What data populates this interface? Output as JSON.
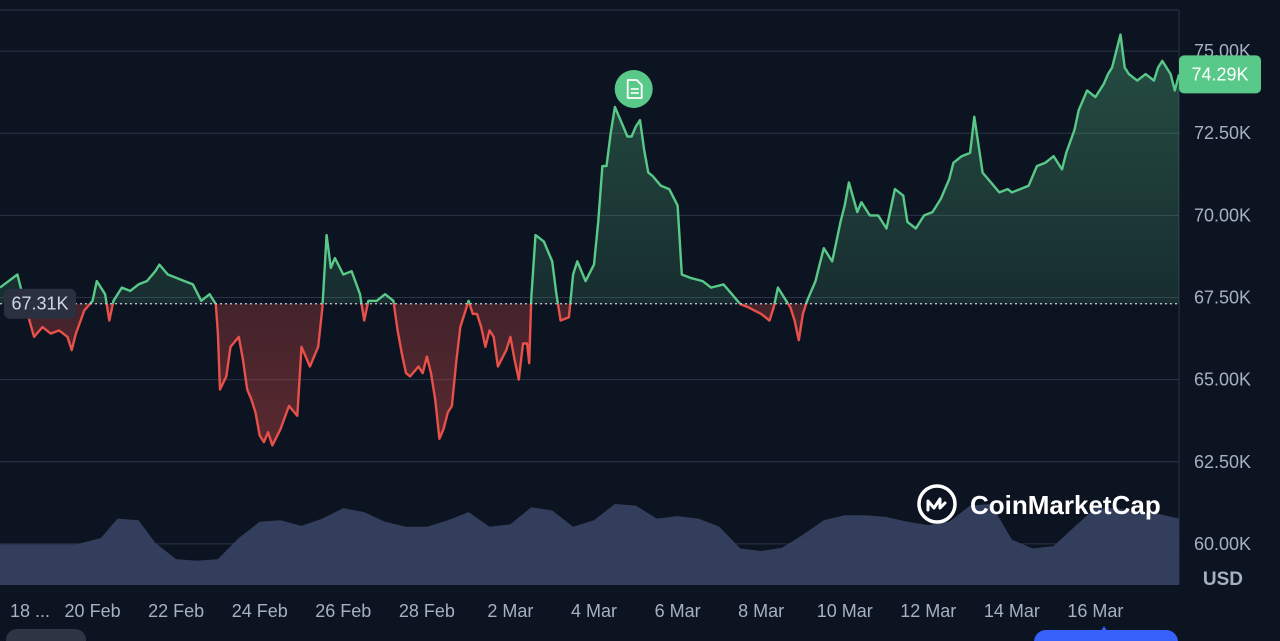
{
  "brand": "CoinMarketCap",
  "currency_label": "USD",
  "colors": {
    "background": "#0d1421",
    "up": "#59c989",
    "down": "#e8504a",
    "volume": "#3a4566",
    "grid": "#2b3346",
    "badge": "#59c989",
    "reference_badge": "#2a3040"
  },
  "icons": {
    "event_marker": "document-icon",
    "brand_logo": "coinmarketcap-logo-icon"
  },
  "chart_data": {
    "type": "area",
    "title": "",
    "xlabel": "",
    "ylabel": "USD",
    "ylim": [
      58750,
      76250
    ],
    "x_range": [
      0,
      30
    ],
    "grid": "horizontal",
    "y_ticks": [
      {
        "value": 75000,
        "label": "75.00K"
      },
      {
        "value": 72500,
        "label": "72.50K"
      },
      {
        "value": 70000,
        "label": "70.00K"
      },
      {
        "value": 67500,
        "label": "67.50K"
      },
      {
        "value": 65000,
        "label": "65.00K"
      },
      {
        "value": 62500,
        "label": "62.50K"
      },
      {
        "value": 60000,
        "label": "60.00K"
      }
    ],
    "x_ticks": [
      {
        "day": 0,
        "label": "18 ..."
      },
      {
        "day": 2,
        "label": "20 Feb"
      },
      {
        "day": 4,
        "label": "22 Feb"
      },
      {
        "day": 6,
        "label": "24 Feb"
      },
      {
        "day": 8,
        "label": "26 Feb"
      },
      {
        "day": 10,
        "label": "28 Feb"
      },
      {
        "day": 12,
        "label": "2 Mar"
      },
      {
        "day": 14,
        "label": "4 Mar"
      },
      {
        "day": 16,
        "label": "6 Mar"
      },
      {
        "day": 18,
        "label": "8 Mar"
      },
      {
        "day": 20,
        "label": "10 Mar"
      },
      {
        "day": 22,
        "label": "12 Mar"
      },
      {
        "day": 24,
        "label": "14 Mar"
      },
      {
        "day": 26,
        "label": "16 Mar"
      }
    ],
    "reference_price": {
      "value": 67310,
      "label": "67.31K"
    },
    "current_price": {
      "value": 74290,
      "label": "74.29K"
    },
    "event_marker_day": 14.95,
    "price": [
      [
        0.0,
        67800
      ],
      [
        0.2,
        68200
      ],
      [
        0.4,
        67200
      ],
      [
        0.6,
        66300
      ],
      [
        0.8,
        66600
      ],
      [
        1.0,
        66400
      ],
      [
        1.2,
        66500
      ],
      [
        1.4,
        66300
      ],
      [
        1.5,
        65900
      ],
      [
        1.6,
        66400
      ],
      [
        1.8,
        67100
      ],
      [
        2.0,
        67400
      ],
      [
        2.1,
        68000
      ],
      [
        2.3,
        67600
      ],
      [
        2.4,
        66800
      ],
      [
        2.5,
        67400
      ],
      [
        2.7,
        67800
      ],
      [
        2.9,
        67700
      ],
      [
        3.1,
        67900
      ],
      [
        3.3,
        68000
      ],
      [
        3.5,
        68300
      ],
      [
        3.6,
        68500
      ],
      [
        3.8,
        68200
      ],
      [
        4.0,
        68100
      ],
      [
        4.2,
        68000
      ],
      [
        4.4,
        67900
      ],
      [
        4.6,
        67400
      ],
      [
        4.8,
        67600
      ],
      [
        4.95,
        67300
      ],
      [
        5.0,
        66400
      ],
      [
        5.05,
        64700
      ],
      [
        5.2,
        65100
      ],
      [
        5.3,
        66000
      ],
      [
        5.5,
        66300
      ],
      [
        5.6,
        65600
      ],
      [
        5.7,
        64700
      ],
      [
        5.8,
        64400
      ],
      [
        5.9,
        64000
      ],
      [
        6.0,
        63300
      ],
      [
        6.1,
        63100
      ],
      [
        6.2,
        63400
      ],
      [
        6.3,
        63000
      ],
      [
        6.5,
        63500
      ],
      [
        6.7,
        64200
      ],
      [
        6.9,
        63900
      ],
      [
        7.0,
        66000
      ],
      [
        7.2,
        65400
      ],
      [
        7.4,
        66000
      ],
      [
        7.5,
        67200
      ],
      [
        7.6,
        69400
      ],
      [
        7.7,
        68400
      ],
      [
        7.8,
        68700
      ],
      [
        8.0,
        68200
      ],
      [
        8.2,
        68300
      ],
      [
        8.4,
        67600
      ],
      [
        8.5,
        66800
      ],
      [
        8.6,
        67400
      ],
      [
        8.8,
        67400
      ],
      [
        9.0,
        67600
      ],
      [
        9.2,
        67400
      ],
      [
        9.3,
        66500
      ],
      [
        9.4,
        65800
      ],
      [
        9.5,
        65200
      ],
      [
        9.6,
        65100
      ],
      [
        9.8,
        65400
      ],
      [
        9.9,
        65200
      ],
      [
        10.0,
        65700
      ],
      [
        10.1,
        65200
      ],
      [
        10.2,
        64400
      ],
      [
        10.3,
        63200
      ],
      [
        10.4,
        63500
      ],
      [
        10.5,
        64000
      ],
      [
        10.6,
        64200
      ],
      [
        10.7,
        65500
      ],
      [
        10.8,
        66600
      ],
      [
        11.0,
        67400
      ],
      [
        11.1,
        67000
      ],
      [
        11.2,
        67000
      ],
      [
        11.3,
        66600
      ],
      [
        11.4,
        66000
      ],
      [
        11.5,
        66500
      ],
      [
        11.6,
        66300
      ],
      [
        11.7,
        65400
      ],
      [
        11.9,
        65900
      ],
      [
        12.0,
        66300
      ],
      [
        12.1,
        65600
      ],
      [
        12.2,
        65000
      ],
      [
        12.3,
        66100
      ],
      [
        12.4,
        66100
      ],
      [
        12.45,
        65500
      ],
      [
        12.5,
        67500
      ],
      [
        12.6,
        69400
      ],
      [
        12.8,
        69200
      ],
      [
        13.0,
        68600
      ],
      [
        13.1,
        67600
      ],
      [
        13.2,
        66800
      ],
      [
        13.4,
        66900
      ],
      [
        13.5,
        68200
      ],
      [
        13.6,
        68600
      ],
      [
        13.8,
        68000
      ],
      [
        14.0,
        68500
      ],
      [
        14.1,
        69800
      ],
      [
        14.2,
        71500
      ],
      [
        14.3,
        71500
      ],
      [
        14.4,
        72500
      ],
      [
        14.5,
        73300
      ],
      [
        14.6,
        73000
      ],
      [
        14.7,
        72700
      ],
      [
        14.8,
        72400
      ],
      [
        14.9,
        72400
      ],
      [
        15.0,
        72700
      ],
      [
        15.1,
        72900
      ],
      [
        15.2,
        72000
      ],
      [
        15.3,
        71300
      ],
      [
        15.4,
        71200
      ],
      [
        15.6,
        70900
      ],
      [
        15.8,
        70800
      ],
      [
        16.0,
        70300
      ],
      [
        16.1,
        68200
      ],
      [
        16.3,
        68100
      ],
      [
        16.6,
        68000
      ],
      [
        16.8,
        67800
      ],
      [
        17.1,
        67900
      ],
      [
        17.3,
        67600
      ],
      [
        17.5,
        67300
      ],
      [
        17.7,
        67200
      ],
      [
        18.0,
        67000
      ],
      [
        18.2,
        66800
      ],
      [
        18.3,
        67200
      ],
      [
        18.4,
        67800
      ],
      [
        18.6,
        67400
      ],
      [
        18.7,
        67200
      ],
      [
        18.8,
        66800
      ],
      [
        18.9,
        66200
      ],
      [
        19.0,
        67000
      ],
      [
        19.1,
        67400
      ],
      [
        19.3,
        68000
      ],
      [
        19.4,
        68500
      ],
      [
        19.5,
        69000
      ],
      [
        19.7,
        68600
      ],
      [
        19.8,
        69200
      ],
      [
        19.9,
        69800
      ],
      [
        20.0,
        70300
      ],
      [
        20.1,
        71000
      ],
      [
        20.3,
        70100
      ],
      [
        20.4,
        70400
      ],
      [
        20.6,
        70000
      ],
      [
        20.8,
        70000
      ],
      [
        20.9,
        69800
      ],
      [
        21.0,
        69600
      ],
      [
        21.2,
        70800
      ],
      [
        21.4,
        70600
      ],
      [
        21.5,
        69800
      ],
      [
        21.7,
        69600
      ],
      [
        21.9,
        70000
      ],
      [
        22.1,
        70100
      ],
      [
        22.3,
        70500
      ],
      [
        22.5,
        71100
      ],
      [
        22.6,
        71600
      ],
      [
        22.8,
        71800
      ],
      [
        23.0,
        71900
      ],
      [
        23.1,
        73000
      ],
      [
        23.3,
        71300
      ],
      [
        23.5,
        71000
      ],
      [
        23.7,
        70700
      ],
      [
        23.9,
        70800
      ],
      [
        24.0,
        70700
      ],
      [
        24.2,
        70800
      ],
      [
        24.4,
        70900
      ],
      [
        24.6,
        71500
      ],
      [
        24.8,
        71600
      ],
      [
        25.0,
        71800
      ],
      [
        25.2,
        71400
      ],
      [
        25.3,
        71900
      ],
      [
        25.5,
        72600
      ],
      [
        25.6,
        73200
      ],
      [
        25.8,
        73800
      ],
      [
        26.0,
        73600
      ],
      [
        26.2,
        74000
      ],
      [
        26.3,
        74300
      ],
      [
        26.4,
        74500
      ],
      [
        26.6,
        75500
      ],
      [
        26.7,
        74500
      ],
      [
        26.8,
        74300
      ],
      [
        27.0,
        74100
      ],
      [
        27.2,
        74300
      ],
      [
        27.4,
        74100
      ],
      [
        27.5,
        74500
      ],
      [
        27.6,
        74700
      ],
      [
        27.8,
        74300
      ],
      [
        27.9,
        73800
      ],
      [
        28.0,
        74290
      ]
    ],
    "volume": [
      [
        0,
        0.5
      ],
      [
        1,
        0.5
      ],
      [
        1.6,
        0.5
      ],
      [
        2.2,
        0.58
      ],
      [
        2.6,
        0.82
      ],
      [
        3.1,
        0.8
      ],
      [
        3.5,
        0.52
      ],
      [
        4.0,
        0.32
      ],
      [
        4.5,
        0.3
      ],
      [
        5.0,
        0.32
      ],
      [
        5.5,
        0.58
      ],
      [
        6.0,
        0.78
      ],
      [
        6.5,
        0.8
      ],
      [
        7.0,
        0.73
      ],
      [
        7.5,
        0.82
      ],
      [
        8.0,
        0.95
      ],
      [
        8.5,
        0.9
      ],
      [
        9.0,
        0.78
      ],
      [
        9.5,
        0.72
      ],
      [
        10.0,
        0.72
      ],
      [
        10.5,
        0.8
      ],
      [
        11.0,
        0.9
      ],
      [
        11.5,
        0.72
      ],
      [
        12.0,
        0.75
      ],
      [
        12.5,
        0.96
      ],
      [
        13.0,
        0.92
      ],
      [
        13.5,
        0.72
      ],
      [
        14.0,
        0.8
      ],
      [
        14.5,
        1.0
      ],
      [
        15.0,
        0.98
      ],
      [
        15.5,
        0.82
      ],
      [
        16.0,
        0.85
      ],
      [
        16.5,
        0.82
      ],
      [
        17.0,
        0.72
      ],
      [
        17.5,
        0.45
      ],
      [
        18.0,
        0.42
      ],
      [
        18.5,
        0.46
      ],
      [
        19.0,
        0.62
      ],
      [
        19.5,
        0.8
      ],
      [
        20.0,
        0.86
      ],
      [
        20.5,
        0.86
      ],
      [
        21.0,
        0.84
      ],
      [
        21.5,
        0.78
      ],
      [
        22.0,
        0.74
      ],
      [
        22.5,
        0.78
      ],
      [
        23.0,
        0.98
      ],
      [
        23.5,
        1.0
      ],
      [
        24.0,
        0.56
      ],
      [
        24.5,
        0.45
      ],
      [
        25.0,
        0.48
      ],
      [
        25.5,
        0.72
      ],
      [
        26.0,
        0.95
      ],
      [
        26.5,
        0.95
      ],
      [
        27.0,
        0.9
      ],
      [
        27.5,
        0.88
      ],
      [
        28.0,
        0.82
      ]
    ]
  }
}
